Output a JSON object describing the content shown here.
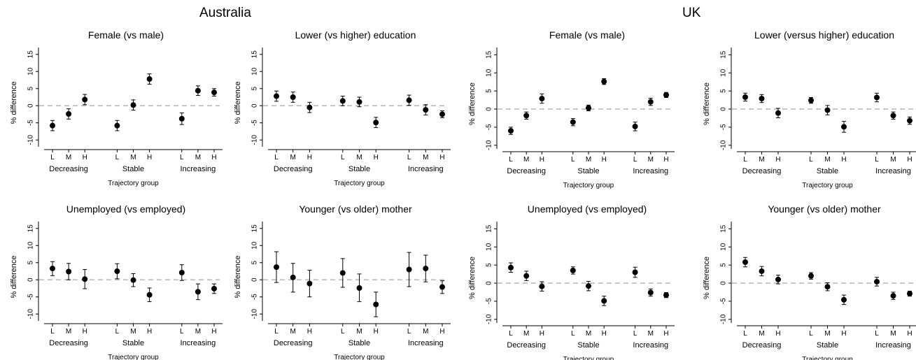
{
  "countries": [
    "Australia",
    "UK"
  ],
  "chart_data": [
    {
      "type": "scatter",
      "country": "Australia",
      "title": "Female (vs male)",
      "xlabel": "Trajectory group",
      "ylabel": "% difference",
      "ylim": [
        -12,
        17
      ],
      "yticks": [
        -10,
        -5,
        0,
        5,
        10,
        15
      ],
      "groups": [
        "Decreasing",
        "Stable",
        "Increasing"
      ],
      "categories": [
        "L",
        "M",
        "H",
        "L",
        "M",
        "H",
        "L",
        "M",
        "H"
      ],
      "values": [
        -5.8,
        -2.4,
        1.8,
        -5.8,
        0.2,
        7.8,
        -3.8,
        4.4,
        3.9
      ],
      "lower": [
        -7.3,
        -3.9,
        0.3,
        -7.3,
        -1.3,
        6.3,
        -5.5,
        3.0,
        2.8
      ],
      "upper": [
        -4.3,
        -0.9,
        3.3,
        -4.3,
        1.7,
        9.3,
        -2.1,
        5.8,
        5.0
      ],
      "reference_line": 0
    },
    {
      "type": "scatter",
      "country": "Australia",
      "title": "Lower (vs higher) education",
      "xlabel": "Trajectory group",
      "ylabel": "% difference",
      "ylim": [
        -12,
        17
      ],
      "yticks": [
        -10,
        -5,
        0,
        5,
        10,
        15
      ],
      "groups": [
        "Decreasing",
        "Stable",
        "Increasing"
      ],
      "categories": [
        "L",
        "M",
        "H",
        "L",
        "M",
        "H",
        "L",
        "M",
        "H"
      ],
      "values": [
        2.8,
        2.5,
        -0.5,
        1.4,
        1.1,
        -4.9,
        1.6,
        -1.2,
        -2.5
      ],
      "lower": [
        1.3,
        1.0,
        -2.0,
        0.0,
        -0.3,
        -6.4,
        0.1,
        -2.7,
        -3.5
      ],
      "upper": [
        4.3,
        4.0,
        1.0,
        2.8,
        2.5,
        -3.4,
        3.1,
        0.3,
        -1.5
      ],
      "reference_line": 0
    },
    {
      "type": "scatter",
      "country": "UK",
      "title": "Female (vs male)",
      "xlabel": "Trajectory group",
      "ylabel": "% difference",
      "ylim": [
        -11,
        17
      ],
      "yticks": [
        -10,
        -5,
        0,
        5,
        10,
        15
      ],
      "groups": [
        "Decreasing",
        "Stable",
        "Increasing"
      ],
      "categories": [
        "L",
        "M",
        "H",
        "L",
        "M",
        "H",
        "L",
        "M",
        "H"
      ],
      "values": [
        -6.0,
        -1.8,
        2.9,
        -3.6,
        0.3,
        7.6,
        -4.8,
        2.0,
        3.9
      ],
      "lower": [
        -7.0,
        -2.8,
        1.6,
        -4.6,
        -0.5,
        6.8,
        -6.0,
        1.0,
        3.2
      ],
      "upper": [
        -5.0,
        -0.8,
        4.2,
        -2.6,
        1.1,
        8.4,
        -3.6,
        3.0,
        4.6
      ],
      "reference_line": 0
    },
    {
      "type": "scatter",
      "country": "UK",
      "title": "Lower (versus higher) education",
      "xlabel": "Trajectory group",
      "ylabel": "% difference",
      "ylim": [
        -11,
        17
      ],
      "yticks": [
        -10,
        -5,
        0,
        5,
        10,
        15
      ],
      "groups": [
        "Decreasing",
        "Stable",
        "Increasing"
      ],
      "categories": [
        "L",
        "M",
        "H",
        "L",
        "M",
        "H",
        "L",
        "M",
        "H"
      ],
      "values": [
        3.3,
        2.9,
        -1.1,
        2.4,
        -0.3,
        -4.9,
        3.2,
        -1.8,
        -3.2
      ],
      "lower": [
        2.2,
        1.8,
        -2.4,
        1.6,
        -1.6,
        -6.4,
        2.0,
        -2.8,
        -4.2
      ],
      "upper": [
        4.4,
        4.0,
        0.2,
        3.2,
        1.0,
        -3.4,
        4.4,
        -0.8,
        -2.2
      ],
      "reference_line": 0
    },
    {
      "type": "scatter",
      "country": "Australia",
      "title": "Unemployed (vs employed)",
      "xlabel": "Trajectory group",
      "ylabel": "% difference",
      "ylim": [
        -12,
        17
      ],
      "yticks": [
        -10,
        -5,
        0,
        5,
        10,
        15
      ],
      "groups": [
        "Decreasing",
        "Stable",
        "Increasing"
      ],
      "categories": [
        "L",
        "M",
        "H",
        "L",
        "M",
        "H",
        "L",
        "M",
        "H"
      ],
      "values": [
        3.3,
        2.4,
        0.2,
        2.5,
        -0.1,
        -4.4,
        2.1,
        -3.5,
        -2.6
      ],
      "lower": [
        1.2,
        0.0,
        -2.6,
        0.3,
        -2.0,
        -6.4,
        -0.2,
        -5.8,
        -4.0
      ],
      "upper": [
        5.3,
        4.8,
        3.0,
        4.7,
        1.8,
        -2.4,
        4.4,
        -1.2,
        -1.2
      ],
      "reference_line": 0
    },
    {
      "type": "scatter",
      "country": "Australia",
      "title": "Younger (vs older) mother",
      "xlabel": "Trajectory group",
      "ylabel": "% difference",
      "ylim": [
        -12,
        17
      ],
      "yticks": [
        -10,
        -5,
        0,
        5,
        10,
        15
      ],
      "groups": [
        "Decreasing",
        "Stable",
        "Increasing"
      ],
      "categories": [
        "L",
        "M",
        "H",
        "L",
        "M",
        "H",
        "L",
        "M",
        "H"
      ],
      "values": [
        3.7,
        0.7,
        -1.1,
        2.0,
        -2.4,
        -7.2,
        3.0,
        3.3,
        -2.1
      ],
      "lower": [
        -0.8,
        -3.6,
        -5.0,
        -2.2,
        -6.4,
        -10.8,
        -2.0,
        -0.6,
        -4.0
      ],
      "upper": [
        8.2,
        4.8,
        2.8,
        6.2,
        1.7,
        -3.6,
        8.0,
        7.2,
        -0.3
      ],
      "reference_line": 0
    },
    {
      "type": "scatter",
      "country": "UK",
      "title": "Unemployed (vs employed)",
      "xlabel": "Trajectory group",
      "ylabel": "% difference",
      "ylim": [
        -11,
        17
      ],
      "yticks": [
        -10,
        -5,
        0,
        5,
        10,
        15
      ],
      "groups": [
        "Decreasing",
        "Stable",
        "Increasing"
      ],
      "categories": [
        "L",
        "M",
        "H",
        "L",
        "M",
        "H",
        "L",
        "M",
        "H"
      ],
      "values": [
        4.3,
        2.0,
        -0.9,
        3.5,
        -0.8,
        -4.9,
        3.0,
        -2.6,
        -3.3
      ],
      "lower": [
        3.0,
        0.7,
        -2.2,
        2.5,
        -2.1,
        -6.2,
        1.6,
        -3.6,
        -4.0
      ],
      "upper": [
        5.6,
        3.3,
        0.4,
        4.5,
        0.5,
        -3.6,
        4.4,
        -1.6,
        -2.6
      ],
      "reference_line": 0
    },
    {
      "type": "scatter",
      "country": "UK",
      "title": "Younger (vs older) mother",
      "xlabel": "Trajectory group",
      "ylabel": "% difference",
      "ylim": [
        -11,
        17
      ],
      "yticks": [
        -10,
        -5,
        0,
        5,
        10,
        15
      ],
      "groups": [
        "Decreasing",
        "Stable",
        "Increasing"
      ],
      "categories": [
        "L",
        "M",
        "H",
        "L",
        "M",
        "H",
        "L",
        "M",
        "H"
      ],
      "values": [
        5.8,
        3.3,
        1.0,
        2.0,
        -1.0,
        -4.6,
        0.4,
        -3.5,
        -2.9
      ],
      "lower": [
        4.5,
        2.0,
        -0.2,
        1.1,
        -2.1,
        -5.9,
        -0.8,
        -4.5,
        -3.6
      ],
      "upper": [
        7.1,
        4.6,
        2.2,
        2.9,
        0.1,
        -3.3,
        1.6,
        -2.5,
        -2.2
      ],
      "reference_line": 0
    }
  ]
}
